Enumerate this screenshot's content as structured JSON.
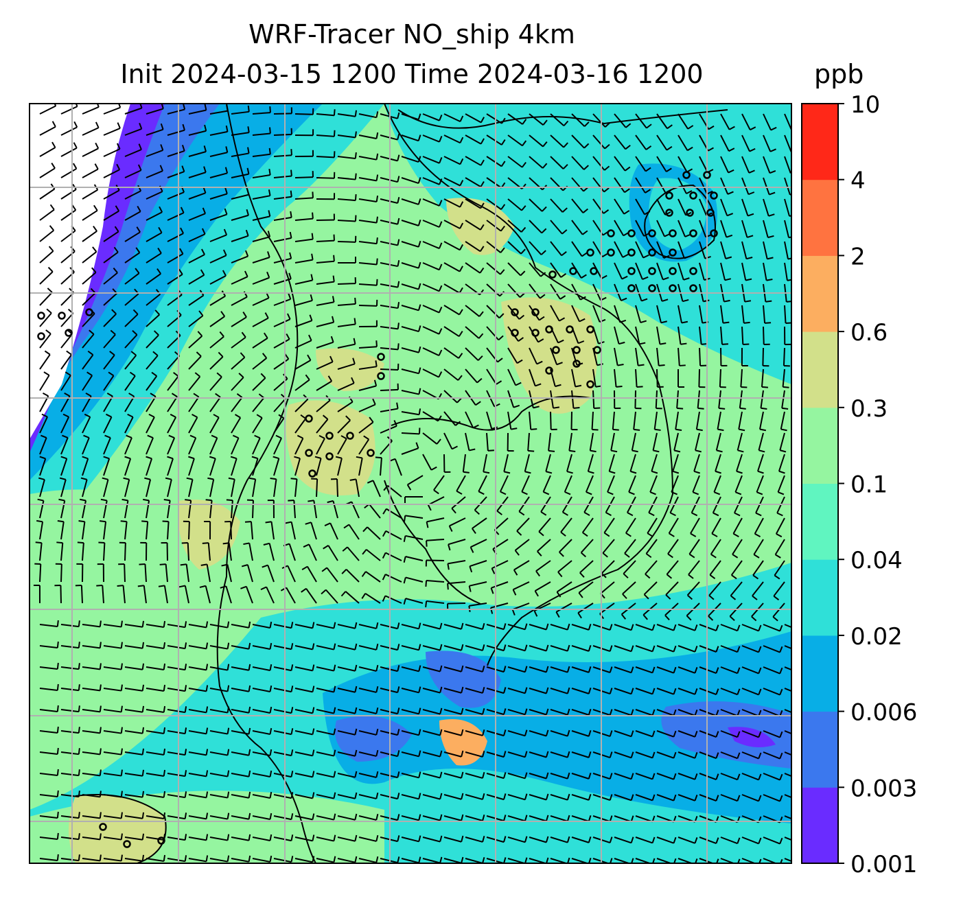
{
  "chart_data": {
    "type": "heatmap",
    "title_line1": "WRF-Tracer NO_ship 4km",
    "title_line2": "Init 2024-03-15 1200 Time 2024-03-16 1200",
    "colorbar": {
      "unit": "ppb",
      "levels": [
        "0.001",
        "0.003",
        "0.006",
        "0.02",
        "0.04",
        "0.1",
        "0.3",
        "0.6",
        "2",
        "4",
        "10"
      ],
      "colors": [
        "#6a2cff",
        "#3b78ee",
        "#08aee6",
        "#2fe0d8",
        "#60f5c0",
        "#95f5a0",
        "#d2e08a",
        "#fcae60",
        "#ff7340",
        "#ff2818"
      ]
    },
    "grid": "on",
    "overlays": [
      "wind barbs",
      "coastlines"
    ]
  }
}
